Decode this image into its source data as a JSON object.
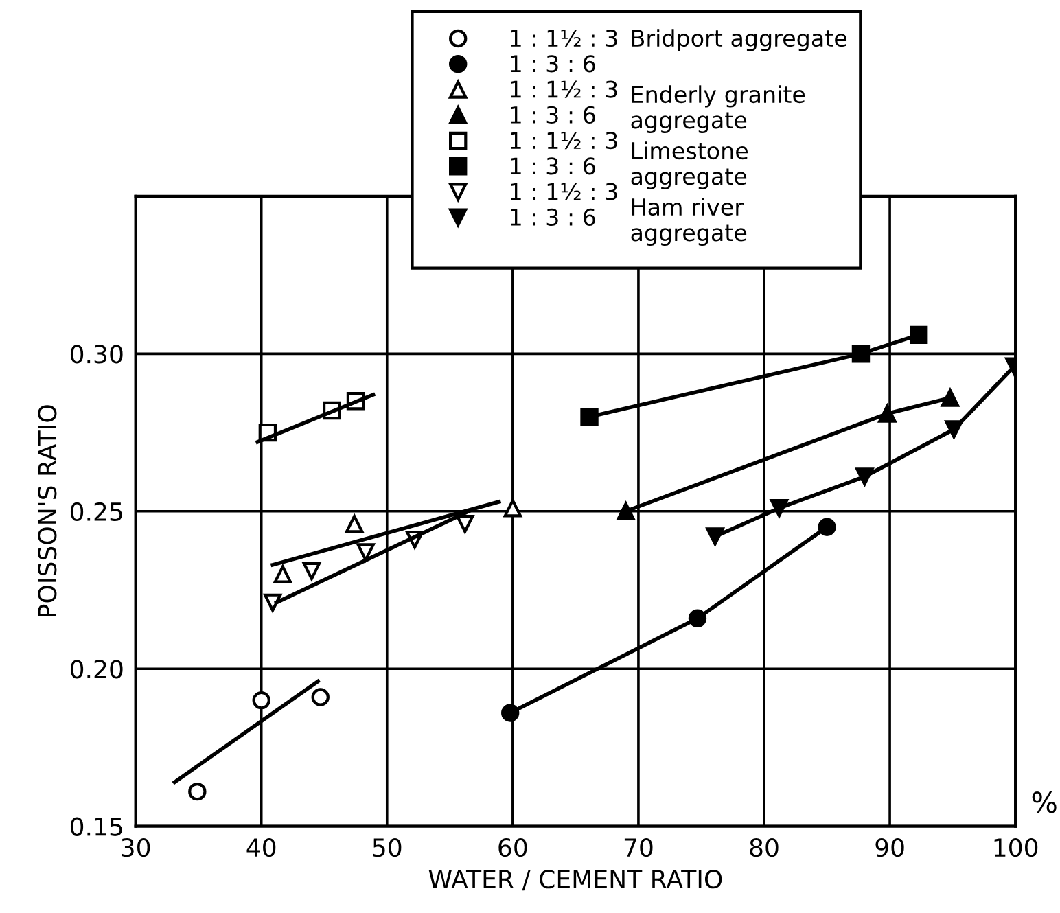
{
  "chart_data": {
    "type": "scatter",
    "xlabel": "WATER / CEMENT RATIO",
    "ylabel": "POISSON'S RATIO",
    "xlim": [
      30,
      100
    ],
    "xticks": [
      30,
      40,
      50,
      60,
      70,
      80,
      90,
      100
    ],
    "ylim": [
      0.15,
      0.35
    ],
    "yticks": [
      {
        "value": 0.15,
        "label": "0.15"
      },
      {
        "value": 0.2,
        "label": "0.20"
      },
      {
        "value": 0.25,
        "label": "0.25"
      },
      {
        "value": 0.3,
        "label": "0.30"
      },
      {
        "value": 0.35,
        "label": null
      }
    ],
    "grid": true,
    "legend": "top",
    "annotations": [
      "Bridport aggregate",
      "Enderly granite\naggregate",
      "Limestone\naggregate",
      "Ham river\naggregate",
      "%"
    ],
    "series": [
      {
        "name": "1 : 1½ : 3",
        "marker": "circle",
        "color": "#000000",
        "x": [
          34.9,
          40.0,
          44.7
        ],
        "values": [
          0.161,
          0.19,
          0.191
        ]
      },
      {
        "name": "1 : 3 : 6",
        "type": "line",
        "marker": "circle",
        "color": "#000000",
        "x": [
          59.8,
          74.7,
          85.0
        ],
        "values": [
          0.186,
          0.216,
          0.245
        ]
      },
      {
        "name": "1 : 1½ : 3",
        "marker": "triangle",
        "color": "#000000",
        "x": [
          41.7,
          47.4,
          60.0
        ],
        "values": [
          0.23,
          0.246,
          0.251
        ]
      },
      {
        "name": "1 : 3 : 6",
        "type": "line",
        "marker": "triangle",
        "color": "#000000",
        "x": [
          69.0,
          89.8,
          94.8
        ],
        "values": [
          0.25,
          0.281,
          0.286
        ]
      },
      {
        "name": "1 : 1½ : 3",
        "marker": "square",
        "color": "#000000",
        "x": [
          40.5,
          45.6,
          47.5
        ],
        "values": [
          0.275,
          0.282,
          0.285
        ]
      },
      {
        "name": "1 : 3 : 6",
        "type": "line",
        "marker": "square",
        "color": "#000000",
        "x": [
          66.1,
          87.7,
          92.3
        ],
        "values": [
          0.28,
          0.3,
          0.306
        ]
      },
      {
        "name": "1 : 1½ : 3",
        "marker": "triangle_down",
        "color": "#000000",
        "x": [
          40.9,
          44.0,
          48.3,
          52.2,
          56.2
        ],
        "values": [
          0.221,
          0.231,
          0.237,
          0.241,
          0.246
        ]
      },
      {
        "name": "1 : 3 : 6",
        "type": "line",
        "marker": "triangle_down",
        "color": "#000000",
        "x": [
          76.1,
          81.2,
          88.0,
          95.1,
          99.9
        ],
        "values": [
          0.242,
          0.251,
          0.261,
          0.276,
          0.296
        ]
      },
      {
        "type": "line",
        "marker": "none",
        "color": "#000000",
        "x": [
          33.1,
          44.5
        ],
        "values": [
          0.164,
          0.196
        ]
      },
      {
        "type": "line",
        "marker": "none",
        "color": "#000000",
        "x": [
          40.9,
          58.9
        ],
        "values": [
          0.233,
          0.253
        ]
      },
      {
        "type": "line",
        "marker": "none",
        "color": "#000000",
        "x": [
          39.7,
          48.9
        ],
        "values": [
          0.272,
          0.287
        ]
      },
      {
        "type": "line",
        "marker": "none",
        "color": "#000000",
        "x": [
          41.2,
          56.5
        ],
        "values": [
          0.221,
          0.25
        ]
      }
    ]
  }
}
